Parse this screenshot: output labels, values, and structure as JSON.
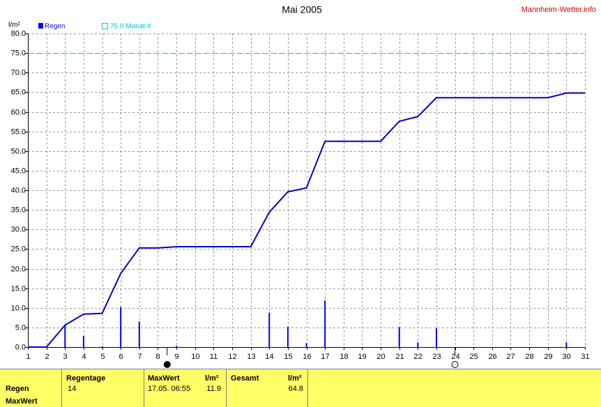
{
  "site": "Mannheim-Wetter.info",
  "chart_data": {
    "type": "bar",
    "title": "Mai 2005",
    "y_label": "l/m²",
    "xlim": [
      1,
      31
    ],
    "xticks": [
      1,
      2,
      3,
      4,
      5,
      6,
      7,
      8,
      9,
      10,
      11,
      12,
      13,
      14,
      15,
      16,
      17,
      18,
      19,
      20,
      21,
      22,
      23,
      24,
      25,
      26,
      27,
      28,
      29,
      30,
      31
    ],
    "x": [
      1,
      2,
      3,
      4,
      5,
      6,
      7,
      8,
      9,
      10,
      11,
      12,
      13,
      14,
      15,
      16,
      17,
      18,
      19,
      20,
      21,
      22,
      23,
      24,
      25,
      26,
      27,
      28,
      29,
      30,
      31
    ],
    "series": [
      {
        "name": "Regen",
        "color": "#0000ff",
        "line_color": "#0000cc",
        "values": [
          0,
          0,
          5.6,
          2.8,
          0.2,
          10.2,
          6.5,
          0,
          0.3,
          0,
          0,
          0,
          0,
          8.8,
          5.2,
          1.0,
          11.9,
          0,
          0,
          0,
          5.1,
          1.2,
          4.8,
          0,
          0,
          0,
          0,
          0,
          0,
          1.2,
          0
        ],
        "line_values": [
          0,
          0,
          5.6,
          8.4,
          8.6,
          18.8,
          25.3,
          25.3,
          25.6,
          25.6,
          25.6,
          25.6,
          25.6,
          34.4,
          39.6,
          40.6,
          52.5,
          52.5,
          52.5,
          52.5,
          57.6,
          58.8,
          63.6,
          63.6,
          63.6,
          63.6,
          63.6,
          63.6,
          63.6,
          64.8,
          64.8
        ]
      }
    ],
    "reference": {
      "value": 75,
      "label": "75.0 Monat-#",
      "color": "#00c8c8"
    },
    "moon_markers": [
      {
        "x": 8.5,
        "filled": true
      },
      {
        "x": 24,
        "filled": false
      }
    ],
    "ylim": [
      0,
      80
    ],
    "yticks": [
      {
        "value": 0,
        "label": "0.0"
      },
      {
        "value": 5,
        "label": "5.0"
      },
      {
        "value": 10,
        "label": "10.0"
      },
      {
        "value": 15,
        "label": "15.0"
      },
      {
        "value": 20,
        "label": "20.0"
      },
      {
        "value": 25,
        "label": "25.0"
      },
      {
        "value": 30,
        "label": "30.0"
      },
      {
        "value": 35,
        "label": "35.0"
      },
      {
        "value": 40,
        "label": "40.0"
      },
      {
        "value": 45,
        "label": "45.0"
      },
      {
        "value": 50,
        "label": "50.0"
      },
      {
        "value": 55,
        "label": "55.0"
      },
      {
        "value": 60,
        "label": "60.0"
      },
      {
        "value": 65,
        "label": "65.0"
      },
      {
        "value": 70,
        "label": "70.0"
      },
      {
        "value": 75,
        "label": "75.0"
      },
      {
        "value": 80,
        "label": "80.0"
      }
    ],
    "grid": true
  },
  "table": {
    "row_labels": [
      "Regen",
      "MaxWert"
    ],
    "headers": [
      "Regentage",
      "MaxWert",
      "l/m²",
      "Gesamt",
      "l/m²"
    ],
    "row": [
      "14",
      "17.05.  06:55",
      "11.9",
      "64.8"
    ]
  }
}
